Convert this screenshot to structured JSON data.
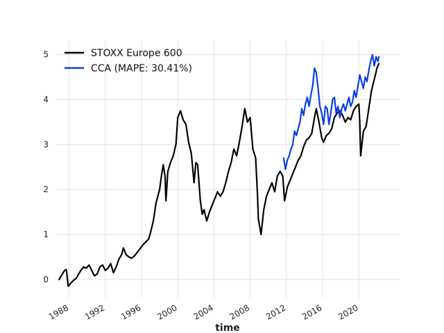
{
  "chart_data": {
    "type": "line",
    "title": "",
    "xlabel": "time",
    "ylabel": "",
    "xlim": [
      1986.5,
      2024.5
    ],
    "ylim": [
      -0.42,
      5.32
    ],
    "grid": true,
    "legend_position": "top-left",
    "x_ticks": [
      {
        "value": 1988,
        "label": "1988"
      },
      {
        "value": 1992,
        "label": "1992"
      },
      {
        "value": 1996,
        "label": "1996"
      },
      {
        "value": 2000,
        "label": "2000"
      },
      {
        "value": 2004,
        "label": "2004"
      },
      {
        "value": 2008,
        "label": "2008"
      },
      {
        "value": 2012,
        "label": "2012"
      },
      {
        "value": 2016,
        "label": "2016"
      },
      {
        "value": 2020,
        "label": "2020"
      }
    ],
    "y_ticks": [
      {
        "value": 0,
        "label": "0"
      },
      {
        "value": 1,
        "label": "1"
      },
      {
        "value": 2,
        "label": "2"
      },
      {
        "value": 3,
        "label": "3"
      },
      {
        "value": 4,
        "label": "4"
      },
      {
        "value": 5,
        "label": "5"
      }
    ],
    "series": [
      {
        "name": "STOXX Europe 600",
        "color": "#000000",
        "points": [
          [
            1986.9,
            0.0
          ],
          [
            1987.2,
            0.1
          ],
          [
            1987.5,
            0.2
          ],
          [
            1987.7,
            0.22
          ],
          [
            1987.9,
            -0.15
          ],
          [
            1988.2,
            -0.08
          ],
          [
            1988.5,
            -0.02
          ],
          [
            1988.8,
            0.03
          ],
          [
            1989.0,
            0.1
          ],
          [
            1989.3,
            0.2
          ],
          [
            1989.6,
            0.28
          ],
          [
            1989.9,
            0.25
          ],
          [
            1990.2,
            0.32
          ],
          [
            1990.5,
            0.2
          ],
          [
            1990.8,
            0.08
          ],
          [
            1991.1,
            0.12
          ],
          [
            1991.4,
            0.28
          ],
          [
            1991.7,
            0.32
          ],
          [
            1992.0,
            0.2
          ],
          [
            1992.3,
            0.25
          ],
          [
            1992.6,
            0.35
          ],
          [
            1992.9,
            0.15
          ],
          [
            1993.2,
            0.28
          ],
          [
            1993.5,
            0.45
          ],
          [
            1993.8,
            0.55
          ],
          [
            1994.0,
            0.7
          ],
          [
            1994.3,
            0.55
          ],
          [
            1994.6,
            0.5
          ],
          [
            1994.9,
            0.47
          ],
          [
            1995.2,
            0.52
          ],
          [
            1995.6,
            0.62
          ],
          [
            1995.9,
            0.7
          ],
          [
            1996.2,
            0.78
          ],
          [
            1996.5,
            0.84
          ],
          [
            1996.8,
            0.9
          ],
          [
            1997.0,
            1.05
          ],
          [
            1997.3,
            1.3
          ],
          [
            1997.6,
            1.7
          ],
          [
            1997.8,
            1.85
          ],
          [
            1998.0,
            2.0
          ],
          [
            1998.2,
            2.3
          ],
          [
            1998.4,
            2.55
          ],
          [
            1998.6,
            2.3
          ],
          [
            1998.7,
            1.75
          ],
          [
            1998.9,
            2.4
          ],
          [
            1999.2,
            2.6
          ],
          [
            1999.5,
            2.75
          ],
          [
            1999.8,
            3.0
          ],
          [
            2000.0,
            3.6
          ],
          [
            2000.3,
            3.75
          ],
          [
            2000.6,
            3.55
          ],
          [
            2000.9,
            3.45
          ],
          [
            2001.2,
            3.05
          ],
          [
            2001.5,
            2.8
          ],
          [
            2001.8,
            2.15
          ],
          [
            2002.0,
            2.6
          ],
          [
            2002.2,
            2.55
          ],
          [
            2002.5,
            1.75
          ],
          [
            2002.7,
            1.45
          ],
          [
            2002.9,
            1.55
          ],
          [
            2003.2,
            1.3
          ],
          [
            2003.5,
            1.5
          ],
          [
            2003.8,
            1.65
          ],
          [
            2004.1,
            1.8
          ],
          [
            2004.4,
            1.95
          ],
          [
            2004.7,
            1.85
          ],
          [
            2005.0,
            1.95
          ],
          [
            2005.3,
            2.15
          ],
          [
            2005.6,
            2.4
          ],
          [
            2005.9,
            2.6
          ],
          [
            2006.2,
            2.9
          ],
          [
            2006.5,
            2.75
          ],
          [
            2006.8,
            3.05
          ],
          [
            2007.1,
            3.4
          ],
          [
            2007.4,
            3.8
          ],
          [
            2007.7,
            3.5
          ],
          [
            2008.0,
            3.6
          ],
          [
            2008.3,
            2.9
          ],
          [
            2008.6,
            2.7
          ],
          [
            2008.8,
            1.9
          ],
          [
            2008.9,
            1.35
          ],
          [
            2009.2,
            1.0
          ],
          [
            2009.5,
            1.55
          ],
          [
            2009.8,
            1.85
          ],
          [
            2010.1,
            2.0
          ],
          [
            2010.4,
            2.15
          ],
          [
            2010.7,
            1.95
          ],
          [
            2011.0,
            2.3
          ],
          [
            2011.3,
            2.4
          ],
          [
            2011.6,
            2.3
          ],
          [
            2011.8,
            1.75
          ],
          [
            2012.1,
            2.05
          ],
          [
            2012.4,
            2.2
          ],
          [
            2012.7,
            2.35
          ],
          [
            2013.0,
            2.5
          ],
          [
            2013.3,
            2.65
          ],
          [
            2013.6,
            2.75
          ],
          [
            2013.9,
            2.95
          ],
          [
            2014.2,
            3.1
          ],
          [
            2014.5,
            3.15
          ],
          [
            2014.8,
            3.25
          ],
          [
            2015.1,
            3.6
          ],
          [
            2015.3,
            3.8
          ],
          [
            2015.6,
            3.5
          ],
          [
            2015.9,
            3.15
          ],
          [
            2016.1,
            3.05
          ],
          [
            2016.4,
            3.2
          ],
          [
            2016.7,
            3.25
          ],
          [
            2017.0,
            3.35
          ],
          [
            2017.3,
            3.6
          ],
          [
            2017.6,
            3.7
          ],
          [
            2017.9,
            3.75
          ],
          [
            2018.2,
            3.65
          ],
          [
            2018.5,
            3.5
          ],
          [
            2018.8,
            3.6
          ],
          [
            2019.1,
            3.55
          ],
          [
            2019.4,
            3.75
          ],
          [
            2019.7,
            3.85
          ],
          [
            2020.0,
            3.9
          ],
          [
            2020.1,
            3.5
          ],
          [
            2020.2,
            2.75
          ],
          [
            2020.5,
            3.3
          ],
          [
            2020.8,
            3.4
          ],
          [
            2021.1,
            3.8
          ],
          [
            2021.4,
            4.2
          ],
          [
            2021.7,
            4.45
          ],
          [
            2022.0,
            4.7
          ],
          [
            2022.2,
            4.8
          ]
        ]
      },
      {
        "name": "CCA (MAPE: 30.41%)",
        "color": "#0a3de6",
        "points": [
          [
            2011.7,
            2.7
          ],
          [
            2011.9,
            2.45
          ],
          [
            2012.1,
            2.65
          ],
          [
            2012.3,
            2.75
          ],
          [
            2012.5,
            2.9
          ],
          [
            2012.7,
            3.0
          ],
          [
            2012.9,
            3.3
          ],
          [
            2013.1,
            3.2
          ],
          [
            2013.3,
            3.35
          ],
          [
            2013.5,
            3.5
          ],
          [
            2013.7,
            3.8
          ],
          [
            2013.9,
            3.65
          ],
          [
            2014.1,
            3.9
          ],
          [
            2014.3,
            4.05
          ],
          [
            2014.5,
            3.85
          ],
          [
            2014.7,
            4.1
          ],
          [
            2014.9,
            4.3
          ],
          [
            2015.1,
            4.7
          ],
          [
            2015.3,
            4.6
          ],
          [
            2015.5,
            4.25
          ],
          [
            2015.7,
            3.85
          ],
          [
            2015.9,
            3.7
          ],
          [
            2016.1,
            3.45
          ],
          [
            2016.3,
            3.85
          ],
          [
            2016.5,
            3.8
          ],
          [
            2016.7,
            3.45
          ],
          [
            2016.9,
            3.7
          ],
          [
            2017.1,
            4.0
          ],
          [
            2017.3,
            4.05
          ],
          [
            2017.5,
            3.7
          ],
          [
            2017.7,
            3.85
          ],
          [
            2017.9,
            3.6
          ],
          [
            2018.1,
            3.8
          ],
          [
            2018.3,
            3.9
          ],
          [
            2018.5,
            3.75
          ],
          [
            2018.7,
            3.9
          ],
          [
            2018.9,
            4.05
          ],
          [
            2019.1,
            3.85
          ],
          [
            2019.3,
            3.95
          ],
          [
            2019.5,
            4.2
          ],
          [
            2019.7,
            4.05
          ],
          [
            2019.9,
            4.3
          ],
          [
            2020.1,
            4.55
          ],
          [
            2020.3,
            4.4
          ],
          [
            2020.5,
            4.25
          ],
          [
            2020.7,
            4.5
          ],
          [
            2020.9,
            4.4
          ],
          [
            2021.1,
            4.65
          ],
          [
            2021.3,
            4.85
          ],
          [
            2021.5,
            5.0
          ],
          [
            2021.7,
            4.75
          ],
          [
            2021.9,
            4.95
          ],
          [
            2022.1,
            4.85
          ],
          [
            2022.2,
            4.95
          ]
        ]
      }
    ]
  }
}
